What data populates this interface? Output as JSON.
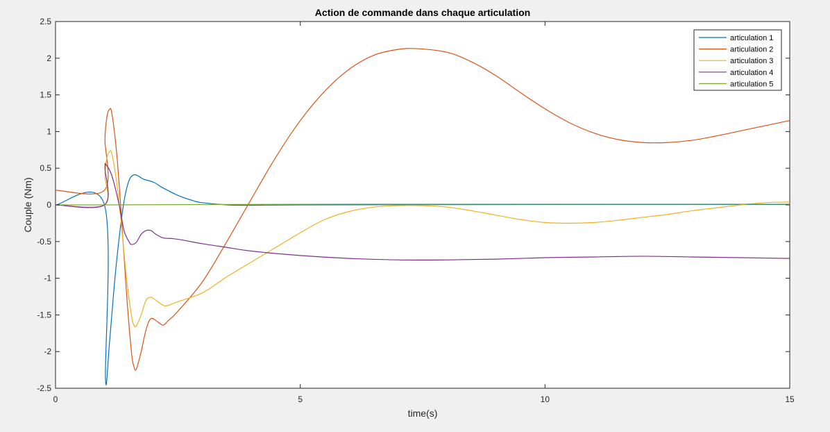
{
  "chart_data": {
    "type": "line",
    "title": "Action de commande dans chaque articulation",
    "xlabel": "time(s)",
    "ylabel": "Couple (Nm)",
    "xlim": [
      0,
      15
    ],
    "ylim": [
      -2.5,
      2.5
    ],
    "xticks": [
      0,
      5,
      10,
      15
    ],
    "yticks": [
      -2.5,
      -2,
      -1.5,
      -1,
      -0.5,
      0,
      0.5,
      1,
      1.5,
      2,
      2.5
    ],
    "xtick_labels": [
      "0",
      "5",
      "10",
      "15"
    ],
    "ytick_labels": [
      "-2.5",
      "-2",
      "-1.5",
      "-1",
      "-0.5",
      "0",
      "0.5",
      "1",
      "1.5",
      "2",
      "2.5"
    ],
    "grid": false,
    "legend_position": "top-right",
    "series": [
      {
        "name": "articulation 1",
        "color": "#0072BD",
        "points": [
          [
            0,
            0
          ],
          [
            1,
            0
          ],
          [
            1.02,
            -2.36
          ],
          [
            1.1,
            -1.9
          ],
          [
            1.2,
            -1.1
          ],
          [
            1.3,
            -0.45
          ],
          [
            1.4,
            0.05
          ],
          [
            1.5,
            0.33
          ],
          [
            1.6,
            0.41
          ],
          [
            1.7,
            0.39
          ],
          [
            1.8,
            0.35
          ],
          [
            2.0,
            0.31
          ],
          [
            2.2,
            0.23
          ],
          [
            2.5,
            0.13
          ],
          [
            2.8,
            0.06
          ],
          [
            3.0,
            0.03
          ],
          [
            3.5,
            0.0
          ],
          [
            4.0,
            -0.005
          ],
          [
            5,
            0
          ],
          [
            10,
            0.005
          ],
          [
            15,
            0.005
          ]
        ]
      },
      {
        "name": "articulation 2",
        "color": "#D95319",
        "points": [
          [
            0,
            0.2
          ],
          [
            1,
            0.2
          ],
          [
            1.01,
            0.9
          ],
          [
            1.05,
            1.2
          ],
          [
            1.1,
            1.3
          ],
          [
            1.15,
            1.25
          ],
          [
            1.25,
            0.7
          ],
          [
            1.35,
            -0.2
          ],
          [
            1.45,
            -1.2
          ],
          [
            1.55,
            -2.0
          ],
          [
            1.6,
            -2.2
          ],
          [
            1.65,
            -2.24
          ],
          [
            1.75,
            -2.0
          ],
          [
            1.85,
            -1.7
          ],
          [
            1.95,
            -1.55
          ],
          [
            2.1,
            -1.6
          ],
          [
            2.2,
            -1.64
          ],
          [
            2.3,
            -1.58
          ],
          [
            2.5,
            -1.45
          ],
          [
            3.0,
            -1.05
          ],
          [
            3.5,
            -0.5
          ],
          [
            4.0,
            0.08
          ],
          [
            4.5,
            0.65
          ],
          [
            5.0,
            1.15
          ],
          [
            5.5,
            1.55
          ],
          [
            6.0,
            1.85
          ],
          [
            6.5,
            2.04
          ],
          [
            7.0,
            2.12
          ],
          [
            7.4,
            2.13
          ],
          [
            8.0,
            2.08
          ],
          [
            8.5,
            1.95
          ],
          [
            9.0,
            1.76
          ],
          [
            9.5,
            1.53
          ],
          [
            10.0,
            1.31
          ],
          [
            10.5,
            1.12
          ],
          [
            11.0,
            0.98
          ],
          [
            11.5,
            0.89
          ],
          [
            12.0,
            0.85
          ],
          [
            12.5,
            0.85
          ],
          [
            13.0,
            0.88
          ],
          [
            13.5,
            0.94
          ],
          [
            14.0,
            1.01
          ],
          [
            14.5,
            1.08
          ],
          [
            15.0,
            1.15
          ]
        ]
      },
      {
        "name": "articulation 3",
        "color": "#EDB120",
        "points": [
          [
            0,
            0
          ],
          [
            1,
            0
          ],
          [
            1.01,
            0.4
          ],
          [
            1.05,
            0.65
          ],
          [
            1.1,
            0.72
          ],
          [
            1.15,
            0.7
          ],
          [
            1.25,
            0.3
          ],
          [
            1.35,
            -0.3
          ],
          [
            1.45,
            -1.0
          ],
          [
            1.55,
            -1.5
          ],
          [
            1.6,
            -1.64
          ],
          [
            1.65,
            -1.65
          ],
          [
            1.75,
            -1.5
          ],
          [
            1.85,
            -1.3
          ],
          [
            1.95,
            -1.26
          ],
          [
            2.05,
            -1.3
          ],
          [
            2.2,
            -1.37
          ],
          [
            2.3,
            -1.37
          ],
          [
            2.5,
            -1.32
          ],
          [
            3.0,
            -1.2
          ],
          [
            3.5,
            -0.98
          ],
          [
            4.0,
            -0.78
          ],
          [
            4.5,
            -0.58
          ],
          [
            5.0,
            -0.38
          ],
          [
            5.5,
            -0.2
          ],
          [
            6.0,
            -0.09
          ],
          [
            6.5,
            -0.03
          ],
          [
            7.0,
            -0.01
          ],
          [
            7.5,
            -0.01
          ],
          [
            8.0,
            -0.03
          ],
          [
            8.5,
            -0.08
          ],
          [
            9.0,
            -0.14
          ],
          [
            9.5,
            -0.2
          ],
          [
            10.0,
            -0.24
          ],
          [
            10.5,
            -0.25
          ],
          [
            11.0,
            -0.24
          ],
          [
            11.5,
            -0.21
          ],
          [
            12.0,
            -0.17
          ],
          [
            12.5,
            -0.13
          ],
          [
            13.0,
            -0.08
          ],
          [
            13.5,
            -0.04
          ],
          [
            14.0,
            0.0
          ],
          [
            14.5,
            0.03
          ],
          [
            15.0,
            0.04
          ]
        ]
      },
      {
        "name": "articulation 4",
        "color": "#7E2F8E",
        "points": [
          [
            0,
            0
          ],
          [
            1,
            0
          ],
          [
            1.01,
            0.5
          ],
          [
            1.03,
            0.55
          ],
          [
            1.15,
            0.4
          ],
          [
            1.3,
            0.0
          ],
          [
            1.4,
            -0.35
          ],
          [
            1.5,
            -0.5
          ],
          [
            1.55,
            -0.54
          ],
          [
            1.65,
            -0.51
          ],
          [
            1.75,
            -0.4
          ],
          [
            1.85,
            -0.35
          ],
          [
            1.95,
            -0.35
          ],
          [
            2.05,
            -0.4
          ],
          [
            2.2,
            -0.45
          ],
          [
            2.4,
            -0.46
          ],
          [
            2.6,
            -0.48
          ],
          [
            3.0,
            -0.53
          ],
          [
            3.5,
            -0.58
          ],
          [
            4.0,
            -0.63
          ],
          [
            5.0,
            -0.69
          ],
          [
            6.0,
            -0.73
          ],
          [
            7.0,
            -0.75
          ],
          [
            8.0,
            -0.75
          ],
          [
            9.0,
            -0.74
          ],
          [
            10.0,
            -0.72
          ],
          [
            11.0,
            -0.71
          ],
          [
            12.0,
            -0.7
          ],
          [
            13.0,
            -0.71
          ],
          [
            14.0,
            -0.72
          ],
          [
            15.0,
            -0.73
          ]
        ]
      },
      {
        "name": "articulation 5",
        "color": "#77AC30",
        "points": [
          [
            0,
            0
          ],
          [
            1,
            0
          ],
          [
            3,
            0.005
          ],
          [
            6,
            0.01
          ],
          [
            10,
            0.01
          ],
          [
            15,
            0.01
          ]
        ]
      }
    ]
  }
}
